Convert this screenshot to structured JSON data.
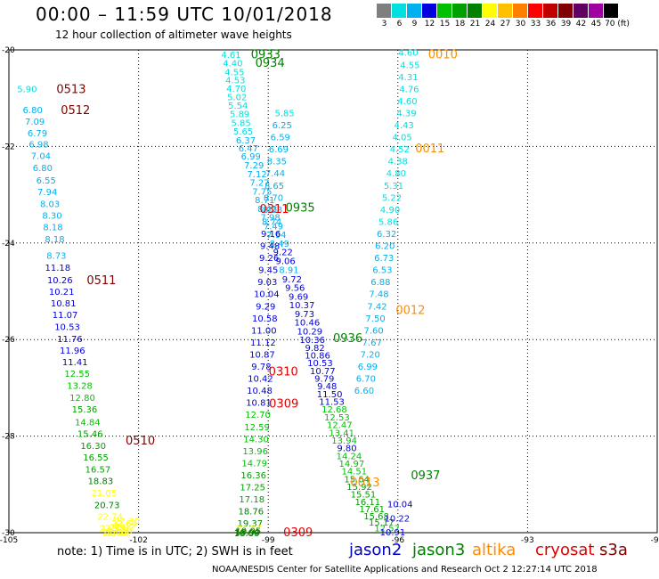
{
  "header": {
    "title": "00:00  –  11:59 UTC 10/01/2018",
    "subtitle": "12 hour collection of altimeter wave heights"
  },
  "colorbar": {
    "colors": [
      "#7f7f7f",
      "#00e0e0",
      "#00b0f0",
      "#0000e0",
      "#00c000",
      "#00a000",
      "#008000",
      "#ffff00",
      "#ffc000",
      "#ff8000",
      "#ff0000",
      "#c00000",
      "#800000",
      "#600060",
      "#a000a0",
      "#000000"
    ],
    "labels": [
      "3",
      "6",
      "9",
      "12",
      "15",
      "18",
      "21",
      "24",
      "27",
      "30",
      "33",
      "36",
      "39",
      "42",
      "45",
      "70 (ft)"
    ]
  },
  "legend": {
    "note": "note:  1) Time is in UTC;  2) SWH is in feet",
    "satellites": [
      {
        "name": "jason2",
        "color": "#0000c8"
      },
      {
        "name": "jason3",
        "color": "#008000"
      },
      {
        "name": "altika",
        "color": "#ff8c00"
      },
      {
        "name": "cryosat",
        "color": "#e00000"
      },
      {
        "name": "s3a",
        "color": "#800000"
      }
    ]
  },
  "footer": "NOAA/NESDIS Center for Satellite Applications and Research   Oct  2 12:27:14 UTC 2018",
  "chart_data": {
    "type": "scatter",
    "title": "00:00  –  11:59 UTC 10/01/2018",
    "xlim": [
      -105,
      -90
    ],
    "ylim": [
      -30,
      -20
    ],
    "xticks": [
      "-105",
      "-102",
      "-99",
      "-96",
      "-93",
      "-90"
    ],
    "yticks": [
      "-20",
      "-22",
      "-24",
      "-26",
      "-28",
      "-30"
    ],
    "xtick_values": [
      -105,
      -102,
      -99,
      -96,
      -93,
      -90
    ],
    "ytick_values": [
      -20,
      -22,
      -24,
      -26,
      -28,
      -30
    ],
    "grid": true,
    "series": [
      {
        "name": "s3a",
        "color_key": "s3a",
        "x": [
          -104.58,
          -104.45,
          -104.4,
          -104.34,
          -104.31,
          -104.26,
          -104.22,
          -104.14,
          -104.11,
          -104.05,
          -104.0,
          -103.98,
          -103.94,
          -103.9,
          -103.87,
          -103.82,
          -103.78,
          -103.74,
          -103.7,
          -103.65,
          -103.59,
          -103.53,
          -103.47,
          -103.42,
          -103.36,
          -103.3,
          -103.25,
          -103.18,
          -103.12,
          -103.05,
          -102.99,
          -102.94,
          -102.88
        ],
        "y": [
          -20.8,
          -21.24,
          -21.48,
          -21.72,
          -21.95,
          -22.19,
          -22.44,
          -22.69,
          -22.93,
          -23.18,
          -23.42,
          -23.66,
          -23.91,
          -24.25,
          -24.5,
          -24.76,
          -25.0,
          -25.24,
          -25.48,
          -25.73,
          -25.98,
          -26.22,
          -26.46,
          -26.7,
          -26.95,
          -27.2,
          -27.44,
          -27.7,
          -27.94,
          -28.19,
          -28.43,
          -28.68,
          -28.92
        ],
        "values": [
          "5.90",
          "6.80",
          "7.09",
          "6.79",
          "6.98",
          "7.04",
          "6.80",
          "6.55",
          "7.94",
          "8.03",
          "8.30",
          "8.18",
          "8.18",
          "8.73",
          "11.18",
          "10.26",
          "10.21",
          "10.81",
          "11.07",
          "10.53",
          "11.76",
          "11.96",
          "11.41",
          "12.55",
          "13.28",
          "12.80",
          "15.36",
          "14.84",
          "15.46",
          "16.30",
          "16.55",
          "16.57",
          "18.83"
        ]
      },
      {
        "name": "s3a",
        "color_key": "s3a",
        "x": [
          -102.8,
          -102.73,
          -102.66,
          -102.61,
          -102.55,
          -102.49,
          -102.44,
          -102.38,
          -102.33,
          -102.27
        ],
        "y": [
          -29.17,
          -29.42,
          -29.66,
          -29.9,
          -29.98,
          -30.0,
          -29.95,
          -29.88,
          -29.8,
          -29.75
        ],
        "values": [
          "21.05",
          "20.73",
          "22.74",
          "22.58",
          "22.13",
          "22.11",
          "23.06",
          "22.92",
          "22.64",
          "22.30"
        ]
      },
      {
        "name": "jason3",
        "color_key": "mixed",
        "x": [
          -99.86,
          -99.82,
          -99.78,
          -99.76,
          -99.74,
          -99.72,
          -99.7,
          -99.66,
          -99.63,
          -99.58,
          -99.52,
          -99.46,
          -99.4,
          -99.33,
          -99.26,
          -99.2,
          -99.14,
          -99.08,
          -99.02,
          -98.95,
          -98.88,
          -98.81,
          -98.74,
          -98.66,
          -98.6,
          -98.52,
          -98.45,
          -98.38,
          -98.3,
          -98.22,
          -98.16,
          -98.1,
          -98.04,
          -97.98,
          -97.92,
          -97.86,
          -97.8,
          -97.74,
          -97.7,
          -97.64,
          -97.58,
          -97.53,
          -97.47,
          -97.41,
          -97.35,
          -97.3,
          -97.24,
          -97.18,
          -97.13,
          -97.07,
          -97.01,
          -96.95,
          -96.89,
          -96.8,
          -96.7,
          -96.6,
          -96.5,
          -96.38,
          -96.25,
          -96.12,
          -96.02,
          -95.95
        ],
        "y": [
          -20.09,
          -20.27,
          -20.45,
          -20.62,
          -20.79,
          -20.97,
          -21.14,
          -21.32,
          -21.5,
          -21.68,
          -21.86,
          -22.03,
          -22.2,
          -22.38,
          -22.56,
          -22.74,
          -22.92,
          -23.1,
          -23.28,
          -23.46,
          -23.64,
          -23.82,
          -24.0,
          -24.18,
          -24.36,
          -24.55,
          -24.74,
          -24.92,
          -25.1,
          -25.28,
          -25.46,
          -25.64,
          -25.82,
          -26.0,
          -26.16,
          -26.32,
          -26.48,
          -26.64,
          -26.8,
          -26.96,
          -27.12,
          -27.28,
          -27.44,
          -27.6,
          -27.76,
          -27.92,
          -28.08,
          -28.24,
          -28.4,
          -28.56,
          -28.72,
          -28.88,
          -29.04,
          -29.2,
          -29.35,
          -29.5,
          -29.65,
          -29.78,
          -29.9,
          -29.98,
          -29.7,
          -29.4
        ],
        "values": [
          "4.61",
          "4.40",
          "4.55",
          "4.53",
          "4.70",
          "5.02",
          "5.54",
          "5.89",
          "5.85",
          "5.65",
          "6.37",
          "6.47",
          "6.99",
          "7.29",
          "7.12",
          "7.27",
          "7.75",
          "8.71",
          "8.43",
          "7.98",
          "7.49",
          "7.94",
          "8.49",
          "9.22",
          "9.06",
          "8.91",
          "9.72",
          "9.56",
          "9.69",
          "10.37",
          "9.73",
          "10.46",
          "10.29",
          "10.36",
          "9.82",
          "10.86",
          "10.53",
          "10.77",
          "9.79",
          "9.48",
          "11.50",
          "11.53",
          "12.68",
          "12.53",
          "12.47",
          "13.41",
          "13.94",
          "9.80",
          "14.24",
          "14.97",
          "14.51",
          "15.64",
          "15.92",
          "15.51",
          "16.11",
          "17.61",
          "15.68",
          "15.17",
          "12.57",
          "10.91",
          "10.22",
          "10.04"
        ]
      },
      {
        "name": "jason2",
        "color_key": "mixed",
        "x": [
          -98.62,
          -98.68,
          -98.72,
          -98.76,
          -98.8,
          -98.84,
          -98.86,
          -98.88,
          -98.9,
          -98.92,
          -98.94,
          -98.96,
          -98.98,
          -99.0,
          -99.02,
          -99.04,
          -99.06,
          -99.08,
          -99.1,
          -99.12,
          -99.14,
          -99.16,
          -99.18,
          -99.2,
          -99.22,
          -99.24,
          -99.26,
          -99.28,
          -99.3,
          -99.32,
          -99.34,
          -99.36,
          -99.38,
          -99.4,
          -99.42,
          -99.44,
          -99.46,
          -99.48,
          -99.5
        ],
        "y": [
          -21.3,
          -21.55,
          -21.8,
          -22.05,
          -22.3,
          -22.55,
          -22.8,
          -23.05,
          -23.3,
          -23.55,
          -23.8,
          -24.05,
          -24.3,
          -24.55,
          -24.8,
          -25.05,
          -25.3,
          -25.55,
          -25.8,
          -26.05,
          -26.3,
          -26.55,
          -26.8,
          -27.05,
          -27.3,
          -27.55,
          -27.8,
          -28.05,
          -28.3,
          -28.55,
          -28.8,
          -29.05,
          -29.3,
          -29.55,
          -29.8,
          -29.9,
          -29.95,
          -29.98,
          -30.0
        ],
        "values": [
          "5.85",
          "6.25",
          "6.59",
          "6.69",
          "8.35",
          "7.44",
          "8.65",
          "8.70",
          "8.28",
          "8.74",
          "9.16",
          "9.48",
          "9.26",
          "9.45",
          "9.03",
          "10.04",
          "9.29",
          "10.58",
          "11.00",
          "11.12",
          "10.87",
          "9.78",
          "10.42",
          "10.48",
          "10.81",
          "12.70",
          "12.59",
          "14.30",
          "13.96",
          "14.79",
          "16.36",
          "17.25",
          "17.18",
          "18.76",
          "19.37",
          "21.27",
          "19.05",
          "18.90",
          "18.80"
        ]
      },
      {
        "name": "altika",
        "color_key": "mixed",
        "x": [
          -95.76,
          -95.72,
          -95.76,
          -95.74,
          -95.78,
          -95.8,
          -95.86,
          -95.9,
          -95.96,
          -96.0,
          -96.04,
          -96.1,
          -96.14,
          -96.18,
          -96.22,
          -96.26,
          -96.3,
          -96.32,
          -96.36,
          -96.4,
          -96.44,
          -96.48,
          -96.52,
          -96.56,
          -96.6,
          -96.64,
          -96.7,
          -96.74,
          -96.78
        ],
        "y": [
          -20.05,
          -20.3,
          -20.55,
          -20.8,
          -21.05,
          -21.3,
          -21.55,
          -21.8,
          -22.05,
          -22.3,
          -22.55,
          -22.8,
          -23.05,
          -23.3,
          -23.55,
          -23.8,
          -24.05,
          -24.3,
          -24.55,
          -24.8,
          -25.05,
          -25.3,
          -25.55,
          -25.8,
          -26.05,
          -26.3,
          -26.55,
          -26.8,
          -27.05
        ],
        "values": [
          "4.60",
          "4.55",
          "4.31",
          "4.76",
          "4.60",
          "4.39",
          "4.43",
          "4.05",
          "4.52",
          "4.38",
          "4.80",
          "5.31",
          "5.22",
          "4.90",
          "5.86",
          "6.32",
          "6.20",
          "6.73",
          "6.53",
          "6.88",
          "7.48",
          "7.42",
          "7.50",
          "7.60",
          "7.67",
          "7.20",
          "6.99",
          "6.70",
          "6.60"
        ]
      }
    ],
    "pass_labels": [
      {
        "text": "0933",
        "x": -99.4,
        "y": -20.08,
        "satellite": "jason3"
      },
      {
        "text": "0934",
        "x": -99.3,
        "y": -20.26,
        "satellite": "jason3"
      },
      {
        "text": "0010",
        "x": -95.3,
        "y": -20.08,
        "satellite": "altika"
      },
      {
        "text": "0513",
        "x": -103.9,
        "y": -20.8,
        "satellite": "s3a"
      },
      {
        "text": "0512",
        "x": -103.8,
        "y": -21.24,
        "satellite": "s3a"
      },
      {
        "text": "0011",
        "x": -95.6,
        "y": -22.03,
        "satellite": "altika"
      },
      {
        "text": "0311",
        "x": -99.2,
        "y": -23.28,
        "satellite": "cryosat"
      },
      {
        "text": "0935",
        "x": -98.6,
        "y": -23.26,
        "satellite": "jason3"
      },
      {
        "text": "0511",
        "x": -103.2,
        "y": -24.76,
        "satellite": "s3a"
      },
      {
        "text": "0012",
        "x": -96.05,
        "y": -25.38,
        "satellite": "altika"
      },
      {
        "text": "0936",
        "x": -97.5,
        "y": -25.96,
        "satellite": "jason3"
      },
      {
        "text": "0310",
        "x": -98.99,
        "y": -26.65,
        "satellite": "cryosat"
      },
      {
        "text": "0309",
        "x": -98.98,
        "y": -27.32,
        "satellite": "cryosat"
      },
      {
        "text": "0510",
        "x": -102.3,
        "y": -28.08,
        "satellite": "s3a"
      },
      {
        "text": "0937",
        "x": -95.7,
        "y": -28.8,
        "satellite": "jason3"
      },
      {
        "text": "0013",
        "x": -97.1,
        "y": -28.95,
        "satellite": "altika"
      },
      {
        "text": "0309",
        "x": -98.65,
        "y": -29.98,
        "satellite": "cryosat"
      }
    ]
  }
}
